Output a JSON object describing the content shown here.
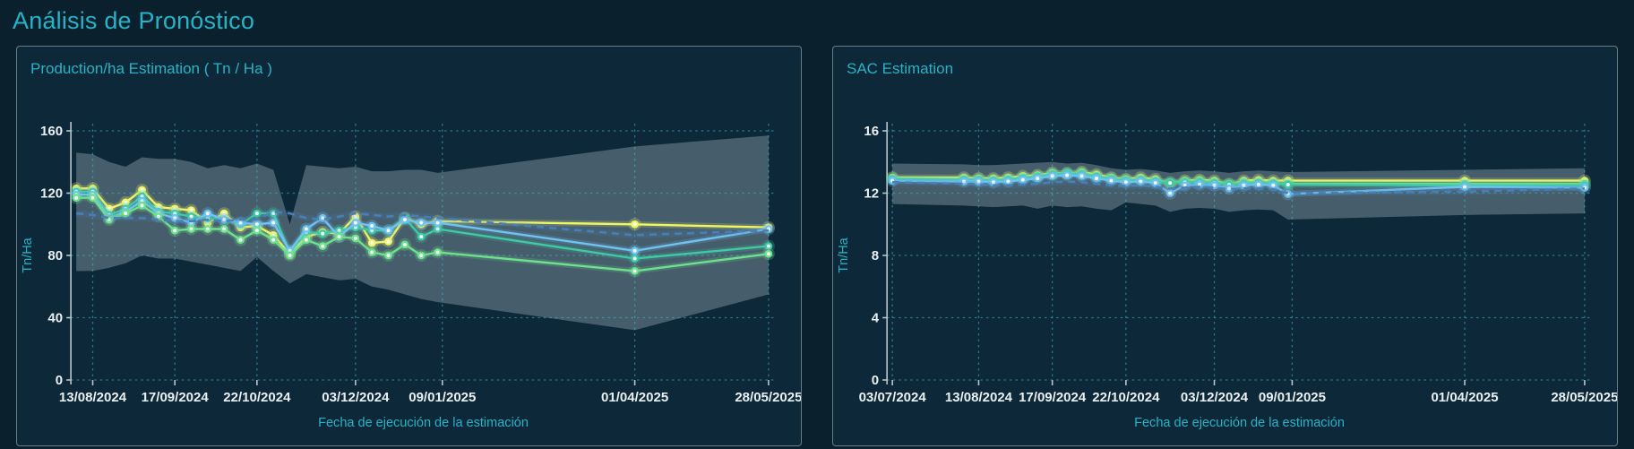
{
  "page_title": "Análisis de Pronóstico",
  "colors": {
    "accent_cyan": "#26b3c7",
    "page_background": "#0a212d",
    "panel_background": "#0d2838",
    "panel_border": "#b0c4ce",
    "grid": "#3fb9cf",
    "axis_line": "#b9c6cc",
    "tick_text": "#e9eff2",
    "confidence_band": "#97aab5",
    "series_yellow": "#eef566",
    "series_green": "#6fe08d",
    "series_teal": "#3fc9a4",
    "series_blue": "#6fc3f2",
    "series_dashed_blue": "#4a7fb5"
  },
  "chart_data": [
    {
      "type": "line",
      "title": "Production/ha Estimation ( Tn / Ha )",
      "xlabel": "Fecha de ejecución de la estimación",
      "ylabel": "Tn/Ha",
      "ylim": [
        0,
        160
      ],
      "yticks": [
        0,
        40,
        80,
        120,
        160
      ],
      "xticks": [
        "13/08/2024",
        "17/09/2024",
        "22/10/2024",
        "03/12/2024",
        "09/01/2025",
        "01/04/2025",
        "28/05/2025"
      ],
      "grid": true,
      "legend_position": "none",
      "x": [
        "06/08/2024",
        "13/08/2024",
        "20/08/2024",
        "27/08/2024",
        "03/09/2024",
        "10/09/2024",
        "17/09/2024",
        "24/09/2024",
        "01/10/2024",
        "08/10/2024",
        "15/10/2024",
        "22/10/2024",
        "29/10/2024",
        "05/11/2024",
        "12/11/2024",
        "19/11/2024",
        "26/11/2024",
        "03/12/2024",
        "10/12/2024",
        "17/12/2024",
        "24/12/2024",
        "31/12/2024",
        "07/01/2025",
        "01/04/2025",
        "28/05/2025"
      ],
      "band": {
        "name": "confidence-interval",
        "upper": [
          146,
          145,
          140,
          137,
          143,
          142,
          142,
          140,
          136,
          138,
          136,
          139,
          135,
          100,
          138,
          137,
          136,
          137,
          134,
          134,
          135,
          135,
          133,
          150,
          157
        ],
        "lower": [
          70,
          70,
          72,
          75,
          80,
          78,
          78,
          76,
          74,
          72,
          70,
          79,
          70,
          62,
          68,
          66,
          64,
          65,
          60,
          58,
          55,
          52,
          50,
          32,
          55
        ]
      },
      "series": [
        {
          "name": "estimation-yellow",
          "color": "#eef566",
          "style": "solid",
          "dots": true,
          "values": [
            123,
            123,
            110,
            114,
            122,
            111,
            110,
            109,
            101,
            107,
            98,
            99,
            93,
            81,
            92,
            95,
            94,
            105,
            88,
            89,
            104,
            100,
            102,
            100,
            98
          ]
        },
        {
          "name": "estimation-teal",
          "color": "#3fc9a4",
          "style": "solid",
          "dots": true,
          "values": [
            121,
            121,
            106,
            110,
            118,
            108,
            107,
            105,
            104,
            103,
            100,
            107,
            107,
            82,
            95,
            94,
            96,
            98,
            96,
            96,
            104,
            92,
            97,
            78,
            86
          ]
        },
        {
          "name": "estimation-blue",
          "color": "#6fc3f2",
          "style": "solid",
          "dots": true,
          "values": [
            119,
            119,
            104,
            108,
            115,
            107,
            104,
            101,
            107,
            103,
            101,
            100,
            101,
            83,
            97,
            104,
            92,
            101,
            99,
            96,
            103,
            101,
            101,
            83,
            97
          ]
        },
        {
          "name": "estimation-green",
          "color": "#6fe08d",
          "style": "solid",
          "dots": true,
          "values": [
            117,
            117,
            103,
            107,
            112,
            105,
            96,
            97,
            97,
            97,
            90,
            96,
            90,
            80,
            90,
            86,
            92,
            91,
            82,
            80,
            87,
            80,
            82,
            70,
            81
          ]
        },
        {
          "name": "reference-dashed-blue",
          "color": "#4a7fb5",
          "style": "dashed",
          "dots": false,
          "values": [
            107,
            106,
            104,
            104,
            104,
            103,
            102,
            102,
            103,
            102,
            103,
            103,
            108,
            107,
            104,
            103,
            105,
            107,
            106,
            105,
            106,
            105,
            104,
            93,
            96
          ]
        }
      ]
    },
    {
      "type": "line",
      "title": "SAC Estimation",
      "xlabel": "Fecha de ejecución de la estimación",
      "ylabel": "Tn/Ha",
      "ylim": [
        0,
        16
      ],
      "yticks": [
        0,
        4,
        8,
        12,
        16
      ],
      "xticks": [
        "03/07/2024",
        "13/08/2024",
        "17/09/2024",
        "22/10/2024",
        "03/12/2024",
        "09/01/2025",
        "01/04/2025",
        "28/05/2025"
      ],
      "grid": true,
      "legend_position": "none",
      "x": [
        "03/07/2024",
        "06/08/2024",
        "13/08/2024",
        "20/08/2024",
        "27/08/2024",
        "03/09/2024",
        "10/09/2024",
        "17/09/2024",
        "24/09/2024",
        "01/10/2024",
        "08/10/2024",
        "15/10/2024",
        "22/10/2024",
        "29/10/2024",
        "05/11/2024",
        "12/11/2024",
        "19/11/2024",
        "26/11/2024",
        "03/12/2024",
        "10/12/2024",
        "17/12/2024",
        "24/12/2024",
        "31/12/2024",
        "07/01/2025",
        "01/04/2025",
        "28/05/2025"
      ],
      "band": {
        "name": "confidence-interval",
        "upper": [
          13.9,
          13.85,
          13.8,
          13.8,
          13.85,
          13.9,
          13.95,
          14.0,
          13.9,
          13.95,
          13.8,
          13.6,
          13.5,
          13.55,
          13.45,
          13.3,
          13.4,
          13.45,
          13.4,
          13.3,
          13.4,
          13.45,
          13.4,
          13.35,
          13.5,
          13.6
        ],
        "lower": [
          11.3,
          11.2,
          11.15,
          11.1,
          11.15,
          11.2,
          11.0,
          11.2,
          11.1,
          11.15,
          11.0,
          10.9,
          11.4,
          11.3,
          11.2,
          10.8,
          11.0,
          11.05,
          11.0,
          10.8,
          10.9,
          10.95,
          10.9,
          10.3,
          10.6,
          10.7
        ]
      },
      "series": [
        {
          "name": "estimation-yellow",
          "color": "#eef566",
          "style": "solid",
          "dots": true,
          "values": [
            13.0,
            13.0,
            12.95,
            12.95,
            13.0,
            13.1,
            13.15,
            13.3,
            13.25,
            13.35,
            13.2,
            13.0,
            12.9,
            13.0,
            12.9,
            12.6,
            12.8,
            12.85,
            12.8,
            12.55,
            12.8,
            12.85,
            12.8,
            12.8,
            12.8,
            12.8
          ]
        },
        {
          "name": "estimation-green",
          "color": "#6fe08d",
          "style": "solid",
          "dots": true,
          "values": [
            12.95,
            12.9,
            12.9,
            12.85,
            12.9,
            13.0,
            13.1,
            13.25,
            13.3,
            13.3,
            13.1,
            12.95,
            12.85,
            12.9,
            12.8,
            12.7,
            12.75,
            12.8,
            12.7,
            12.6,
            12.7,
            12.7,
            12.65,
            12.6,
            12.6,
            12.6
          ]
        },
        {
          "name": "estimation-teal",
          "color": "#3fc9a4",
          "style": "solid",
          "dots": true,
          "values": [
            12.9,
            12.85,
            12.85,
            12.8,
            12.85,
            12.95,
            13.05,
            13.2,
            13.25,
            13.2,
            13.05,
            12.9,
            12.8,
            12.85,
            12.75,
            12.65,
            12.7,
            12.7,
            12.65,
            12.55,
            12.6,
            12.65,
            12.6,
            12.55,
            12.5,
            12.5
          ]
        },
        {
          "name": "estimation-blue",
          "color": "#6fc3f2",
          "style": "solid",
          "dots": true,
          "values": [
            12.8,
            12.75,
            12.75,
            12.7,
            12.75,
            12.85,
            12.95,
            13.1,
            13.15,
            13.1,
            12.95,
            12.8,
            12.7,
            12.75,
            12.65,
            12.0,
            12.5,
            12.55,
            12.5,
            12.3,
            12.5,
            12.55,
            12.5,
            11.95,
            12.4,
            12.35
          ]
        },
        {
          "name": "reference-dashed-blue",
          "color": "#4a7fb5",
          "style": "dashed",
          "dots": false,
          "values": [
            12.7,
            12.6,
            12.55,
            12.5,
            12.5,
            12.55,
            12.6,
            12.7,
            12.75,
            12.7,
            12.6,
            12.5,
            12.45,
            12.5,
            12.4,
            12.3,
            12.35,
            12.4,
            12.35,
            12.25,
            12.3,
            12.3,
            12.25,
            12.0,
            12.1,
            12.3
          ]
        }
      ]
    }
  ]
}
